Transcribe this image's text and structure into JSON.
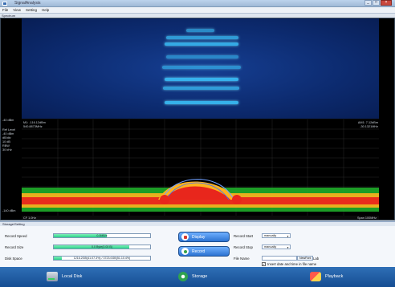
{
  "window": {
    "title": "SignalAnalysis"
  },
  "menu": [
    "File",
    "View",
    "Setting",
    "Help"
  ],
  "spectrum": {
    "section_title": "Spectrum",
    "top_level": "-40 dBm",
    "bottom_level": "-140 dBm",
    "left_info": [
      "Ref Level",
      "-40 dBm",
      "dB/div",
      "10 dB",
      "RBW",
      "30 kHz"
    ],
    "marker_left": [
      "M1: -116.12dBm",
      "540.8873MHz"
    ],
    "marker_right": [
      "ΔM1: 7.12dBm",
      "-30.1321MHz"
    ],
    "center_freq": "CF 1.0Hz",
    "span": "Span 100MHz"
  },
  "storage": {
    "section_title": "Storage/Setting",
    "record_speed": {
      "label": "Record Speed",
      "value": "0.0MB/s",
      "fill": 0.55
    },
    "record_size": {
      "label": "Record Size",
      "value": "0.0 Byte(0.00 B)",
      "fill": 0.78
    },
    "disk_space": {
      "label": "Disk Space",
      "value": "1216.2GB(41.07.3%) / 3723.0GB(51.10.4%)",
      "fill": 0.08
    },
    "display_button": "Display",
    "record_button": "Record",
    "record_start": {
      "label": "Record Start",
      "value": "manually"
    },
    "record_stop": {
      "label": "Record Stop",
      "value": "manually"
    },
    "file_name": {
      "label": "File Name",
      "value": "",
      "button": "NewFont",
      "suffix": "Lab"
    },
    "insert_checkbox": {
      "label": "Insert date and time in file name",
      "checked": true
    }
  },
  "taskbar": {
    "local_disk": "Local Disk",
    "storage": "Storage",
    "playback": "Playback"
  },
  "colors": {
    "accent": "#2c73d2",
    "waterfall_bg": "#0c2a6e",
    "trace_hot": "#e8261c",
    "trace_warm": "#ffb21d",
    "trace_noise": "#23c82e"
  }
}
